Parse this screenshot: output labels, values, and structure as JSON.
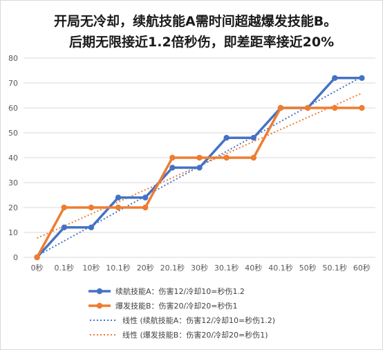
{
  "title_line1": "开局无冷却，续航技能A需时间超越爆发技能B。",
  "title_line2": "后期无限接近1.2倍秒伤，即差距率接近20%",
  "chart_data": {
    "type": "line",
    "categories": [
      "0秒",
      "0.1秒",
      "10秒",
      "10.1秒",
      "20秒",
      "20.1秒",
      "30秒",
      "30.1秒",
      "40秒",
      "40.1秒",
      "50秒",
      "50.1秒",
      "60秒"
    ],
    "ylim": [
      0,
      80
    ],
    "yticks": [
      0,
      10,
      20,
      30,
      40,
      50,
      60,
      70,
      80
    ],
    "grid": true,
    "legend_position": "bottom",
    "series": [
      {
        "name": "续航技能A：伤害12/冷却10=秒伤1.2",
        "color": "#4472c4",
        "values": [
          0,
          12,
          12,
          24,
          24,
          36,
          36,
          48,
          48,
          60,
          60,
          72,
          72
        ]
      },
      {
        "name": "爆发技能B：伤害20/冷却20=秒伤1",
        "color": "#ed7d31",
        "values": [
          0,
          20,
          20,
          20,
          20,
          40,
          40,
          40,
          40,
          60,
          60,
          60,
          60
        ]
      }
    ],
    "trendlines": [
      {
        "name": "线性 (续航技能A：伤害12/冷却10=秒伤1.2)",
        "color": "#4472c4",
        "slope": 6,
        "intercept": 0.55
      },
      {
        "name": "线性 (爆发技能B：伤害20/冷却20=秒伤1)",
        "color": "#ed7d31",
        "slope": 4.85,
        "intercept": 7.7
      }
    ]
  }
}
